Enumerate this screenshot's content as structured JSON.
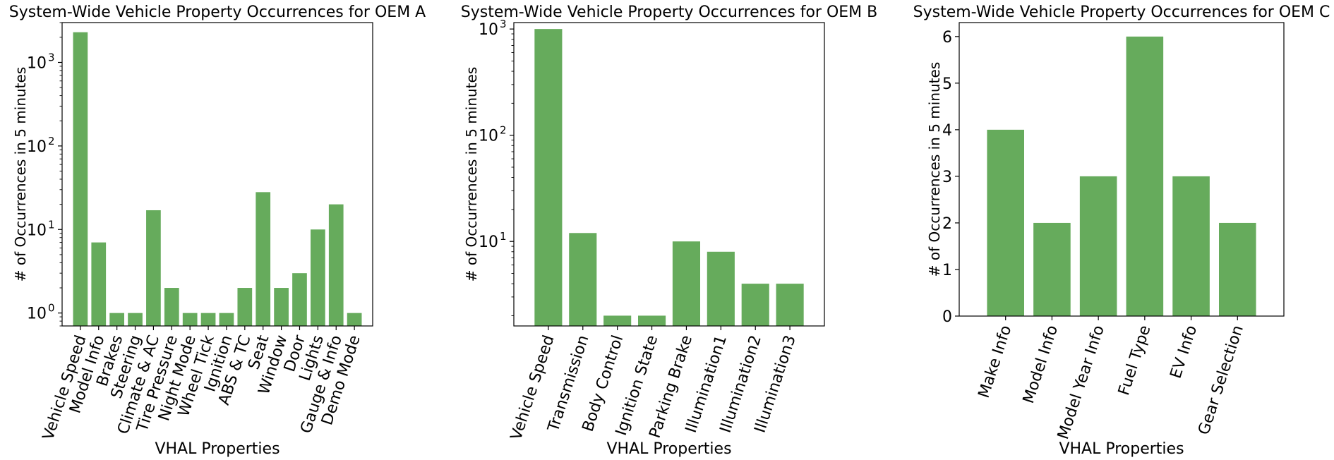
{
  "chart_data": [
    {
      "type": "bar",
      "title": "System-Wide Vehicle Property Occurrences for OEM A",
      "xlabel": "VHAL Properties",
      "ylabel": "# of Occurrences in 5 minutes",
      "yscale": "log",
      "ylim": [
        0.7,
        3000
      ],
      "yticks": [
        1,
        10,
        100,
        1000
      ],
      "ytick_labels": [
        [
          "10",
          "0"
        ],
        [
          "10",
          "1"
        ],
        [
          "10",
          "2"
        ],
        [
          "10",
          "3"
        ]
      ],
      "bar_color": "#66ab5c",
      "grid": false,
      "categories": [
        "Vehicle Speed",
        "Model Info",
        "Brakes",
        "Steering",
        "Climate & AC",
        "Tire Pressure",
        "Night Mode",
        "Wheel Tick",
        "Ignition",
        "ABS & TC",
        "Seat",
        "Window",
        "Door",
        "Lights",
        "Gauge & Info",
        "Demo Mode"
      ],
      "values": [
        2300,
        7,
        1,
        1,
        17,
        2,
        1,
        1,
        1,
        2,
        28,
        2,
        3,
        10,
        20,
        1
      ]
    },
    {
      "type": "bar",
      "title": "System-Wide Vehicle Property Occurrences for OEM B",
      "xlabel": "VHAL Properties",
      "ylabel": "# of Occurrences in 5 minutes",
      "yscale": "log",
      "ylim": [
        1.6,
        1150
      ],
      "yticks": [
        10,
        100,
        1000
      ],
      "ytick_labels": [
        [
          "10",
          "1"
        ],
        [
          "10",
          "2"
        ],
        [
          "10",
          "3"
        ]
      ],
      "bar_color": "#66ab5c",
      "grid": false,
      "categories": [
        "Vehicle Speed",
        "Transmission",
        "Body Control",
        "Ignition State",
        "Parking Brake",
        "Illumination1",
        "Illumination2",
        "Illumination3"
      ],
      "values": [
        1000,
        12,
        2,
        2,
        10,
        8,
        4,
        4
      ]
    },
    {
      "type": "bar",
      "title": "System-Wide Vehicle Property Occurrences for OEM C",
      "xlabel": "VHAL Properties",
      "ylabel": "# of Occurrences in 5 minutes",
      "yscale": "linear",
      "ylim": [
        0,
        6.3
      ],
      "yticks": [
        0,
        1,
        2,
        3,
        4,
        5,
        6
      ],
      "ytick_labels": [
        [
          "0",
          ""
        ],
        [
          "1",
          ""
        ],
        [
          "2",
          ""
        ],
        [
          "3",
          ""
        ],
        [
          "4",
          ""
        ],
        [
          "5",
          ""
        ],
        [
          "6",
          ""
        ]
      ],
      "bar_color": "#66ab5c",
      "grid": false,
      "categories": [
        "Make Info",
        "Model Info",
        "Model Year Info",
        "Fuel Type",
        "EV Info",
        "Gear Selection"
      ],
      "values": [
        4,
        2,
        3,
        6,
        3,
        2
      ]
    }
  ]
}
